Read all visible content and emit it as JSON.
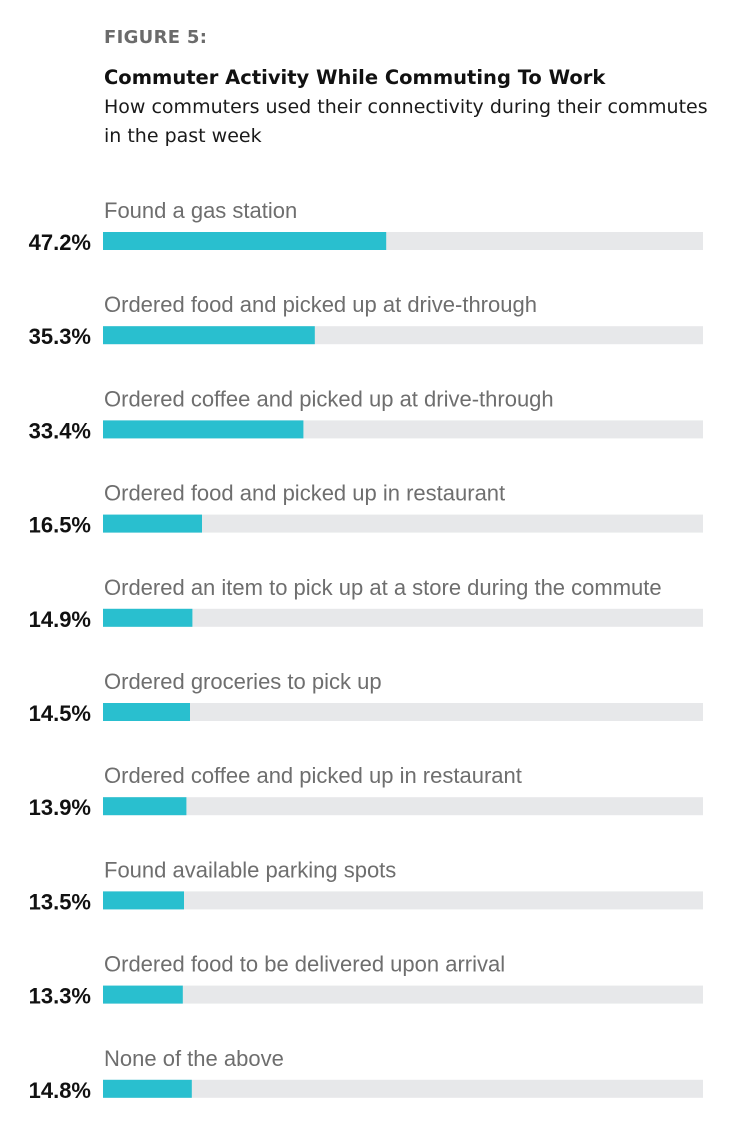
{
  "figure_label": "FIGURE 5:",
  "title": "Commuter Activity While Commuting To Work",
  "subtitle": "How commuters used their connectivity during their commutes in the past week",
  "colors": {
    "bar": "#29bfcf",
    "track": "#e7e8ea"
  },
  "chart_data": {
    "type": "bar",
    "orientation": "horizontal",
    "title": "Commuter Activity While Commuting To Work",
    "subtitle": "How commuters used their connectivity during their commutes in the past week",
    "xlim": [
      0,
      100
    ],
    "grid": false,
    "categories": [
      "Found a gas station",
      "Ordered food and picked up at drive-through",
      "Ordered coffee and picked up at drive-through",
      "Ordered food and picked up in restaurant",
      "Ordered an item to pick up at a store during the commute",
      "Ordered groceries to pick up",
      "Ordered coffee and picked up in restaurant",
      "Found available parking spots",
      "Ordered food to be delivered upon arrival",
      "None of the above"
    ],
    "values": [
      47.2,
      35.3,
      33.4,
      16.5,
      14.9,
      14.5,
      13.9,
      13.5,
      13.3,
      14.8
    ],
    "value_labels": [
      "47.2%",
      "35.3%",
      "33.4%",
      "16.5%",
      "14.9%",
      "14.5%",
      "13.9%",
      "13.5%",
      "13.3%",
      "14.8%"
    ]
  }
}
